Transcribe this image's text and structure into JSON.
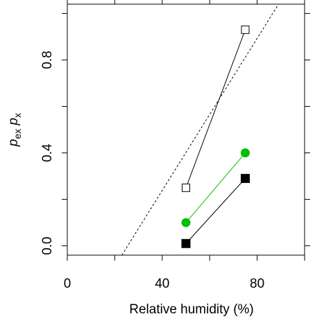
{
  "chart_data": {
    "type": "line",
    "xlabel": "Relative humidity (%)",
    "ylabel": {
      "p1": "p",
      "sub1": "ex",
      "p2": "p",
      "sub2": "x"
    },
    "xlim": [
      0,
      100
    ],
    "ylim": [
      -0.04,
      1.04
    ],
    "x_ticks": [
      0,
      40,
      80
    ],
    "x_minor_ticks": [
      20,
      60,
      100
    ],
    "y_ticks": [
      0.0,
      0.4,
      0.8
    ],
    "y_tick_labels": [
      "0.0",
      "0.4",
      "0.8"
    ],
    "y_minor_ticks": [
      0.2,
      0.6,
      1.0
    ],
    "grid": false,
    "series": [
      {
        "marker": "open-square",
        "color": "#000000",
        "x": [
          50,
          75
        ],
        "y": [
          0.25,
          0.93
        ]
      },
      {
        "marker": "filled-circle",
        "color": "#00c000",
        "x": [
          50,
          75
        ],
        "y": [
          0.1,
          0.4
        ]
      },
      {
        "marker": "filled-square",
        "color": "#000000",
        "x": [
          50,
          75
        ],
        "y": [
          0.01,
          0.29
        ]
      }
    ],
    "reference_line": {
      "style": "dashed",
      "color": "#000000",
      "x": [
        23,
        89
      ],
      "y": [
        -0.04,
        1.04
      ]
    }
  }
}
